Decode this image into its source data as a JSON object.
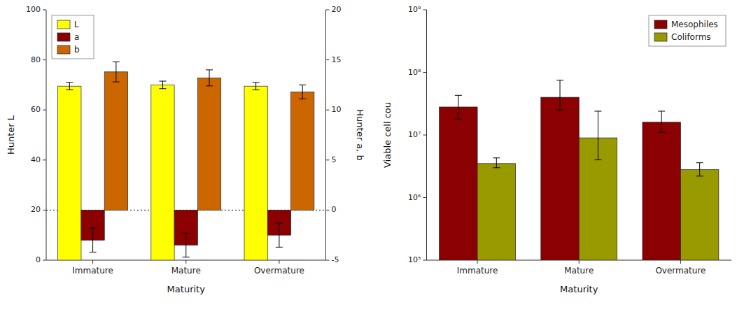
{
  "chart_data": [
    {
      "type": "bar",
      "categories": [
        "Immature",
        "Mature",
        "Overmature"
      ],
      "xlabel": "Maturity",
      "ylabel": "Hunter L",
      "y2label": "Hunter a, b",
      "ylim": [
        0,
        100
      ],
      "yticks": [
        0,
        20,
        40,
        60,
        80,
        100
      ],
      "y2lim": [
        -5,
        20
      ],
      "y2ticks": [
        -5,
        0,
        5,
        10,
        15,
        20
      ],
      "legend": "upper left",
      "series": [
        {
          "name": "L",
          "color": "#FFFF00",
          "values": [
            69.5,
            70.0,
            69.5
          ],
          "errors": [
            1.5,
            1.5,
            1.5
          ]
        },
        {
          "name": "a",
          "color": "#8B0000",
          "axis": "y2",
          "values": [
            -3.0,
            -3.5,
            -2.5
          ],
          "errors": [
            1.2,
            1.2,
            1.2
          ]
        },
        {
          "name": "b",
          "color": "#CC6600",
          "axis": "y2",
          "values": [
            13.8,
            13.2,
            11.8
          ],
          "errors": [
            1.0,
            0.8,
            0.7
          ]
        }
      ]
    },
    {
      "type": "bar",
      "log": "y",
      "categories": [
        "Immature",
        "Mature",
        "Overmature"
      ],
      "xlabel": "Maturity",
      "ylabel": "Viable cell cou",
      "ylim": [
        100000,
        1000000000
      ],
      "yticks": [
        {
          "value": 100000,
          "label": "10⁵"
        },
        {
          "value": 1000000,
          "label": "10⁶"
        },
        {
          "value": 10000000,
          "label": "10⁷"
        },
        {
          "value": 100000000,
          "label": "10⁸"
        },
        {
          "value": 1000000000,
          "label": "10⁹"
        }
      ],
      "legend": "upper right",
      "series": [
        {
          "name": "Mesophiles",
          "color": "#8B0000",
          "values": [
            28000000,
            40000000,
            16000000
          ],
          "errors_lower": [
            10000000,
            15000000,
            5000000
          ],
          "errors_upper": [
            15000000,
            35000000,
            8000000
          ]
        },
        {
          "name": "Coliforms",
          "color": "#999900",
          "values": [
            3500000,
            9000000,
            2800000
          ],
          "errors_lower": [
            500000,
            5000000,
            600000
          ],
          "errors_upper": [
            800000,
            15000000,
            800000
          ]
        }
      ]
    }
  ]
}
